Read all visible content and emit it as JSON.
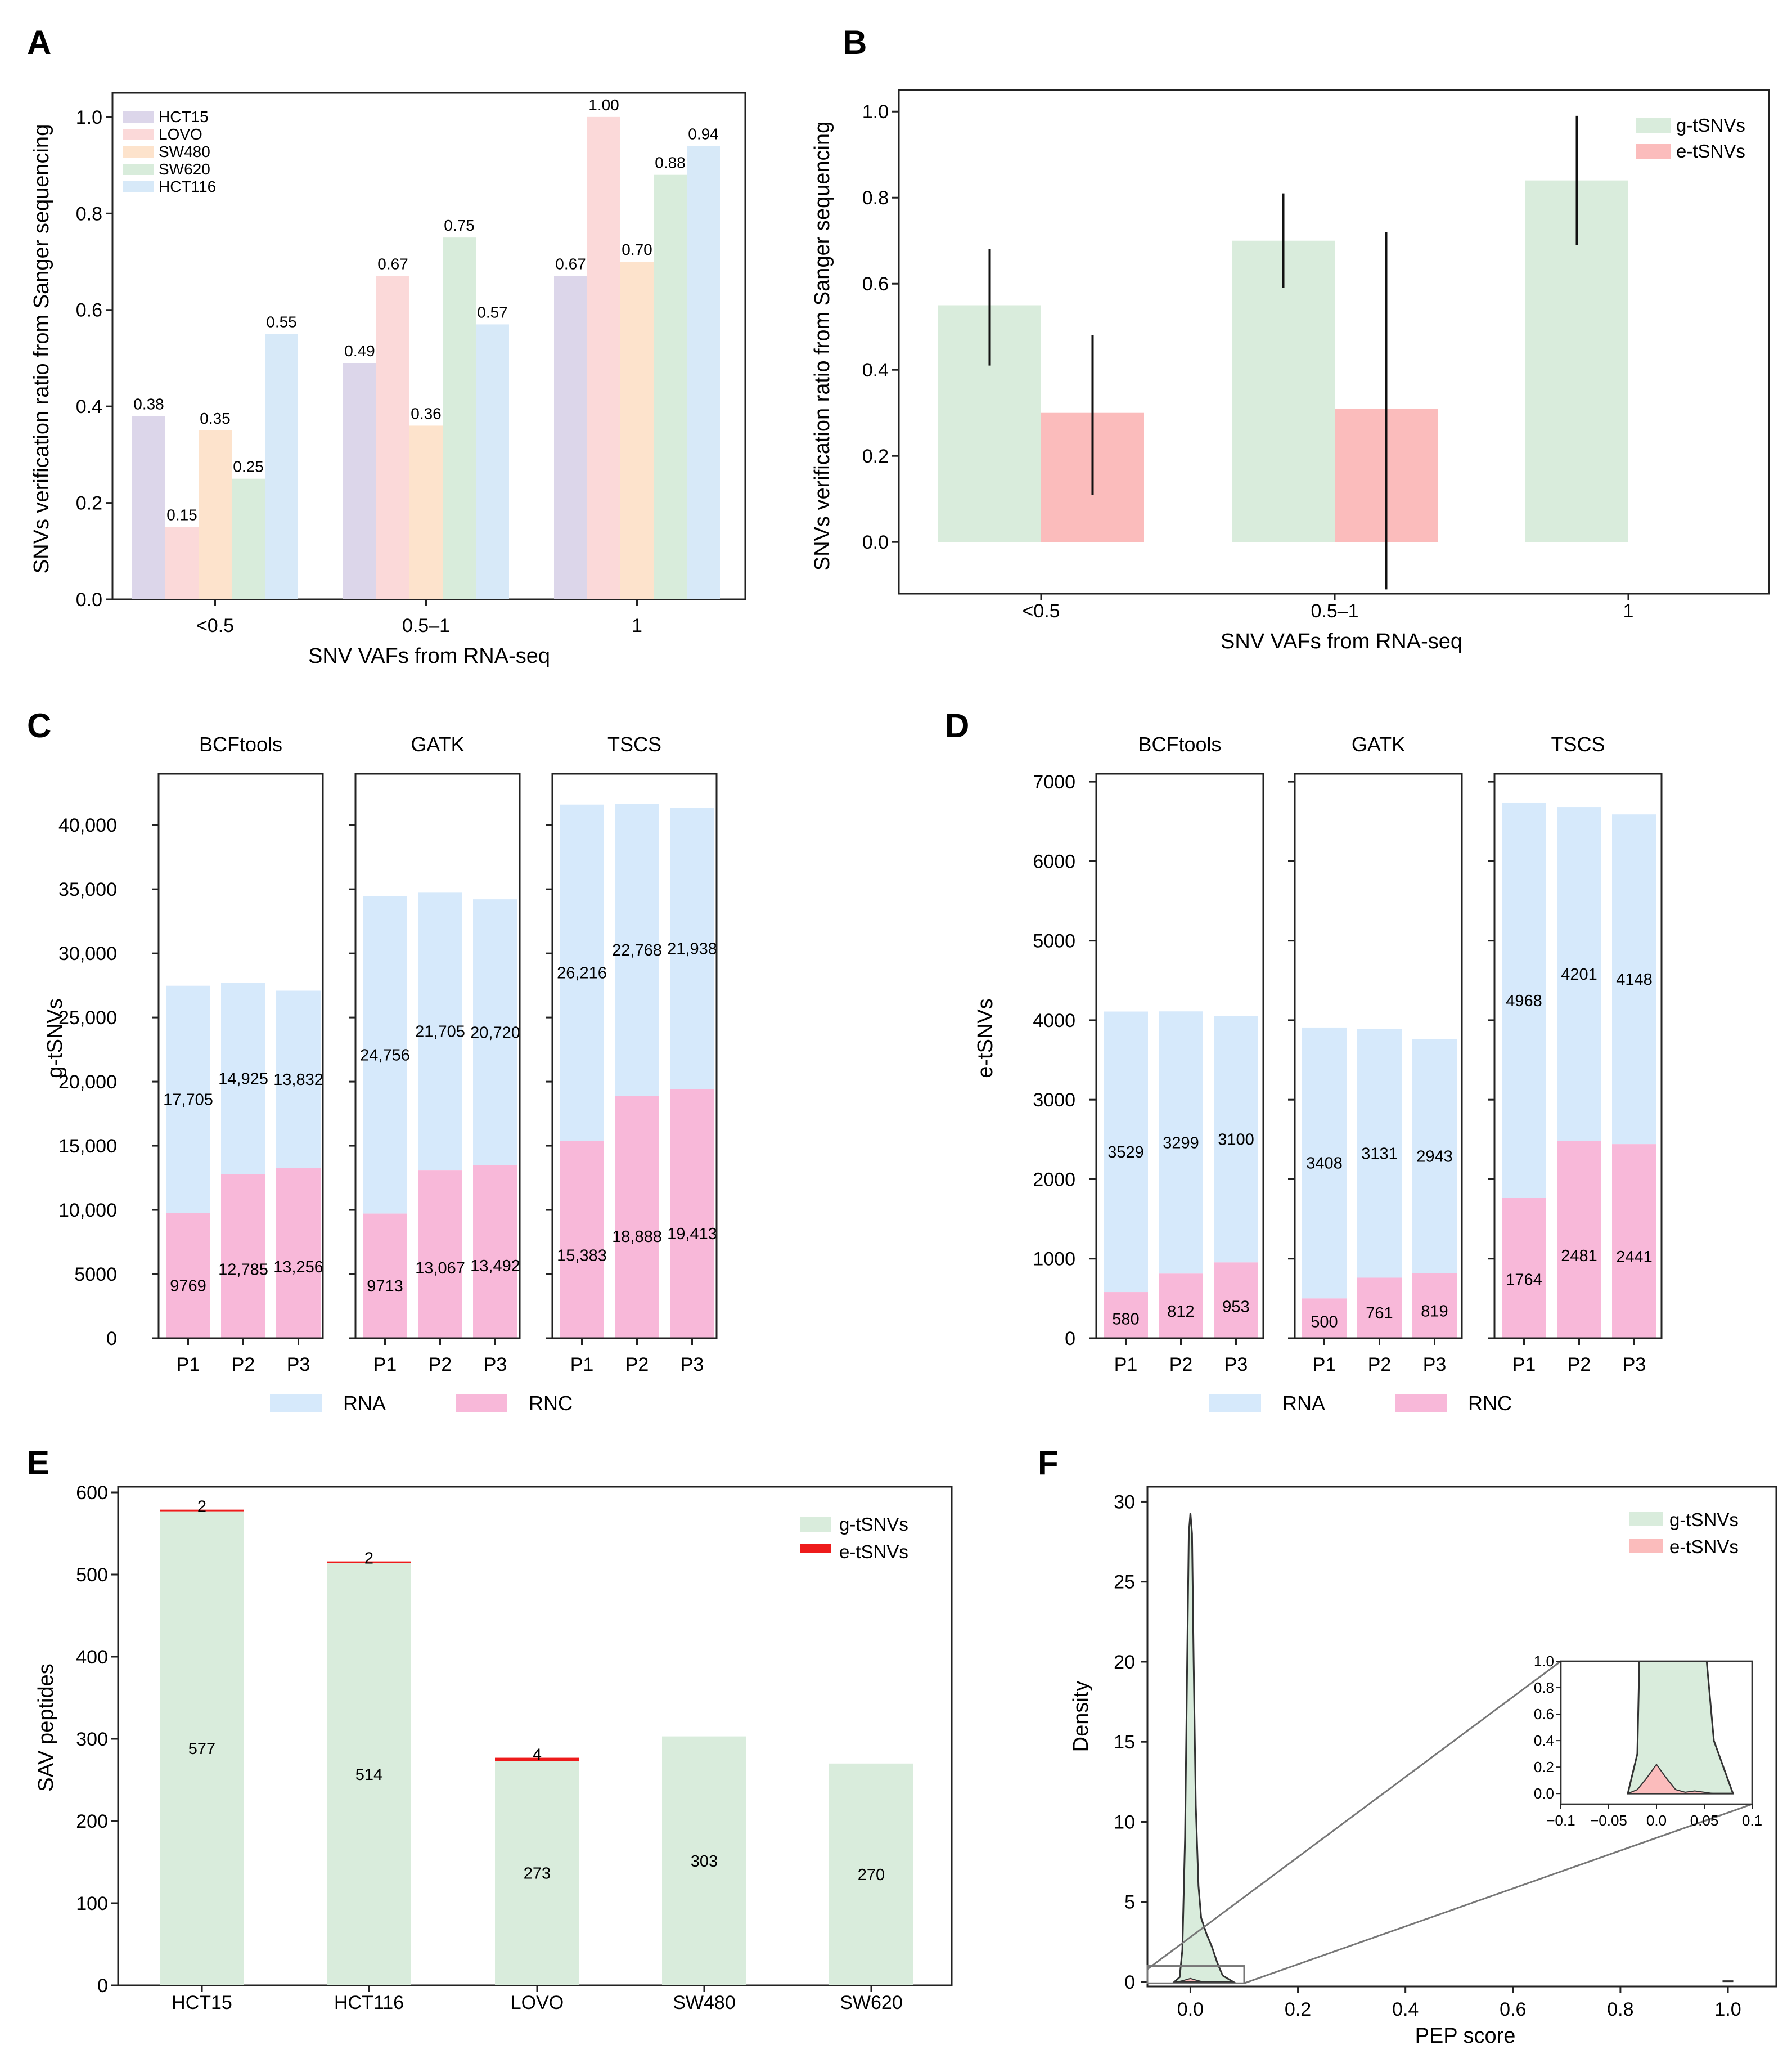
{
  "colors": {
    "HCT15": "#dcd6ea",
    "LOVO": "#fbd9d9",
    "SW480": "#fde3cc",
    "SW620": "#d8ecdb",
    "HCT116": "#d7e9f8",
    "g_tsnv": "#d9ecdc",
    "e_tsnv": "#fbbcbc",
    "e_line": "#ee1b1b",
    "rna": "#d6e9fb",
    "rnc": "#f8b8d9",
    "axis": "#222222"
  },
  "chart_data": [
    {
      "panel": "A",
      "type": "bar",
      "xlabel": "SNV VAFs from RNA-seq",
      "ylabel": "SNVs verification ratio from Sanger sequencing",
      "categories": [
        "<0.5",
        "0.5–1",
        "1"
      ],
      "ylim": [
        0,
        1.05
      ],
      "yticks": [
        0.0,
        0.2,
        0.4,
        0.6,
        0.8,
        1.0
      ],
      "ytick_labels": [
        "0.0",
        "0.2",
        "0.4",
        "0.6",
        "0.8",
        "1.0"
      ],
      "legend_position": "top-left",
      "series": [
        {
          "name": "HCT15",
          "values": [
            0.38,
            0.49,
            0.67
          ],
          "labels": [
            "0.38",
            "0.49",
            "0.67"
          ]
        },
        {
          "name": "LOVO",
          "values": [
            0.15,
            0.67,
            1.0
          ],
          "labels": [
            "0.15",
            "0.67",
            "1.00"
          ]
        },
        {
          "name": "SW480",
          "values": [
            0.35,
            0.36,
            0.7
          ],
          "labels": [
            "0.35",
            "0.36",
            "0.70"
          ]
        },
        {
          "name": "SW620",
          "values": [
            0.25,
            0.75,
            0.88
          ],
          "labels": [
            "0.25",
            "0.75",
            "0.88"
          ]
        },
        {
          "name": "HCT116",
          "values": [
            0.55,
            0.57,
            0.94
          ],
          "labels": [
            "0.55",
            "0.57",
            "0.94"
          ]
        }
      ]
    },
    {
      "panel": "B",
      "type": "bar",
      "xlabel": "SNV VAFs from RNA-seq",
      "ylabel": "SNVs verification ratio from Sanger sequencing",
      "categories": [
        "<0.5",
        "0.5–1",
        "1"
      ],
      "ylim": [
        -0.12,
        1.05
      ],
      "yticks": [
        0.0,
        0.2,
        0.4,
        0.6,
        0.8,
        1.0
      ],
      "ytick_labels": [
        "0.0",
        "0.2",
        "0.4",
        "0.6",
        "0.8",
        "1.0"
      ],
      "legend_position": "top-right",
      "series": [
        {
          "name": "g-tSNVs",
          "values": [
            0.55,
            0.7,
            0.84
          ],
          "error_low": [
            0.41,
            0.59,
            0.69
          ],
          "error_high": [
            0.68,
            0.81,
            0.99
          ]
        },
        {
          "name": "e-tSNVs",
          "values": [
            0.3,
            0.31,
            0.0
          ],
          "error_low": [
            0.11,
            -0.11,
            null
          ],
          "error_high": [
            0.48,
            0.72,
            null
          ]
        }
      ]
    },
    {
      "panel": "C",
      "type": "bar",
      "stacked": true,
      "ylabel": "g-tSNVs",
      "facets": [
        "BCFtools",
        "GATK",
        "TSCS"
      ],
      "categories": [
        "P1",
        "P2",
        "P3"
      ],
      "ylim": [
        0,
        44000
      ],
      "yticks": [
        0,
        5000,
        10000,
        15000,
        20000,
        25000,
        30000,
        35000,
        40000
      ],
      "ytick_labels": [
        "0",
        "5000",
        "10,000",
        "15,000",
        "20,000",
        "25,000",
        "30,000",
        "35,000",
        "40,000"
      ],
      "legend_position": "bottom",
      "series": [
        {
          "name": "RNC",
          "values": [
            [
              9769,
              12785,
              13256
            ],
            [
              9713,
              13067,
              13492
            ],
            [
              15383,
              18888,
              19413
            ]
          ],
          "labels": [
            [
              "9769",
              "12,785",
              "13,256"
            ],
            [
              "9713",
              "13,067",
              "13,492"
            ],
            [
              "15,383",
              "18,888",
              "19,413"
            ]
          ]
        },
        {
          "name": "RNA",
          "values": [
            [
              17705,
              14925,
              13832
            ],
            [
              24756,
              21705,
              20720
            ],
            [
              26216,
              22768,
              21938
            ]
          ],
          "labels": [
            [
              "17,705",
              "14,925",
              "13,832"
            ],
            [
              "24,756",
              "21,705",
              "20,720"
            ],
            [
              "26,216",
              "22,768",
              "21,938"
            ]
          ]
        }
      ]
    },
    {
      "panel": "D",
      "type": "bar",
      "stacked": true,
      "ylabel": "e-tSNVs",
      "facets": [
        "BCFtools",
        "GATK",
        "TSCS"
      ],
      "categories": [
        "P1",
        "P2",
        "P3"
      ],
      "ylim": [
        0,
        7100
      ],
      "yticks": [
        0,
        1000,
        2000,
        3000,
        4000,
        5000,
        6000,
        7000
      ],
      "ytick_labels": [
        "0",
        "1000",
        "2000",
        "3000",
        "4000",
        "5000",
        "6000",
        "7000"
      ],
      "legend_position": "bottom",
      "series": [
        {
          "name": "RNC",
          "values": [
            [
              580,
              812,
              953
            ],
            [
              500,
              761,
              819
            ],
            [
              1764,
              2481,
              2441
            ]
          ],
          "labels": [
            [
              "580",
              "812",
              "953"
            ],
            [
              "500",
              "761",
              "819"
            ],
            [
              "1764",
              "2481",
              "2441"
            ]
          ]
        },
        {
          "name": "RNA",
          "values": [
            [
              3529,
              3299,
              3100
            ],
            [
              3408,
              3131,
              2943
            ],
            [
              4968,
              4201,
              4148
            ]
          ],
          "labels": [
            [
              "3529",
              "3299",
              "3100"
            ],
            [
              "3408",
              "3131",
              "2943"
            ],
            [
              "4968",
              "4201",
              "4148"
            ]
          ]
        }
      ]
    },
    {
      "panel": "E",
      "type": "bar",
      "stacked": true,
      "ylabel": "SAV peptides",
      "categories": [
        "HCT15",
        "HCT116",
        "LOVO",
        "SW480",
        "SW620"
      ],
      "ylim": [
        0,
        600
      ],
      "yticks": [
        0,
        100,
        200,
        300,
        400,
        500,
        600
      ],
      "ytick_labels": [
        "0",
        "100",
        "200",
        "300",
        "400",
        "500",
        "600"
      ],
      "legend_position": "top-right",
      "series": [
        {
          "name": "g-tSNVs",
          "values": [
            577,
            514,
            273,
            303,
            270
          ],
          "labels": [
            "577",
            "514",
            "273",
            "303",
            "270"
          ]
        },
        {
          "name": "e-tSNVs",
          "values": [
            2,
            2,
            4,
            0,
            0
          ],
          "labels": [
            "2",
            "2",
            "4",
            "",
            ""
          ]
        }
      ]
    },
    {
      "panel": "F",
      "type": "area",
      "xlabel": "PEP score",
      "ylabel": "Density",
      "xlim": [
        -0.08,
        1.09
      ],
      "ylim": [
        0,
        31
      ],
      "xticks": [
        0.0,
        0.2,
        0.4,
        0.6,
        0.8,
        1.0
      ],
      "xtick_labels": [
        "0.0",
        "0.2",
        "0.4",
        "0.6",
        "0.8",
        "1.0"
      ],
      "yticks": [
        0,
        5,
        10,
        15,
        20,
        25,
        30
      ],
      "ytick_labels": [
        "0",
        "5",
        "10",
        "15",
        "20",
        "25",
        "30"
      ],
      "legend_position": "top-right",
      "series": [
        {
          "name": "g-tSNVs",
          "x": [
            -0.03,
            -0.02,
            -0.015,
            -0.01,
            -0.006,
            -0.003,
            0.0,
            0.003,
            0.006,
            0.01,
            0.015,
            0.02,
            0.03,
            0.04,
            0.05,
            0.06,
            0.08
          ],
          "y": [
            0.0,
            0.3,
            2.0,
            9.0,
            20.0,
            28.0,
            29.3,
            28.0,
            20.0,
            11.0,
            6.0,
            4.0,
            3.0,
            2.2,
            1.2,
            0.4,
            0.0
          ]
        },
        {
          "name": "e-tSNVs",
          "x": [
            -0.03,
            -0.02,
            -0.01,
            0.0,
            0.01,
            0.02,
            0.03,
            0.04,
            0.05,
            0.06
          ],
          "y": [
            0.0,
            0.03,
            0.12,
            0.22,
            0.12,
            0.03,
            0.01,
            0.02,
            0.01,
            0.0
          ]
        }
      ],
      "inset": {
        "xlim": [
          -0.1,
          0.1
        ],
        "ylim": [
          -0.08,
          1.0
        ],
        "xticks": [
          -0.1,
          -0.05,
          0.0,
          0.05,
          0.1
        ],
        "xtick_labels": [
          "−0.1",
          "−0.05",
          "0.0",
          "0.05",
          "0.1"
        ],
        "yticks": [
          0.0,
          0.2,
          0.4,
          0.6,
          0.8,
          1.0
        ],
        "ytick_labels": [
          "0.0",
          "0.2",
          "0.4",
          "0.6",
          "0.8",
          "1.0"
        ]
      }
    }
  ],
  "panels": {
    "A": {
      "letter": "A",
      "xlabel": "SNV VAFs from RNA-seq",
      "ylabel": "SNVs verification ratio from Sanger sequencing"
    },
    "B": {
      "letter": "B",
      "xlabel": "SNV VAFs from RNA-seq",
      "ylabel": "SNVs verification ratio from Sanger sequencing"
    },
    "C": {
      "letter": "C",
      "ylabel": "g-tSNVs"
    },
    "D": {
      "letter": "D",
      "ylabel": "e-tSNVs"
    },
    "E": {
      "letter": "E",
      "ylabel": "SAV peptides"
    },
    "F": {
      "letter": "F",
      "xlabel": "PEP score",
      "ylabel": "Density"
    }
  },
  "legends": {
    "A": [
      "HCT15",
      "LOVO",
      "SW480",
      "SW620",
      "HCT116"
    ],
    "B": [
      "g-tSNVs",
      "e-tSNVs"
    ],
    "CD": [
      "RNA",
      "RNC"
    ],
    "E": [
      "g-tSNVs",
      "e-tSNVs"
    ],
    "F": [
      "g-tSNVs",
      "e-tSNVs"
    ]
  }
}
